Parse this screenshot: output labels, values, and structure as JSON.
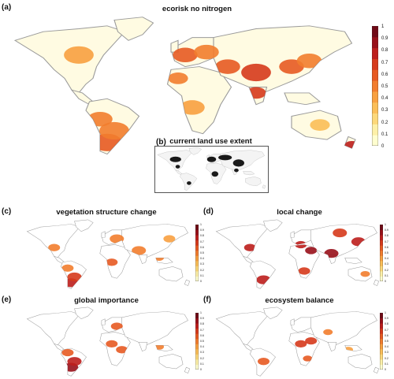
{
  "panels": {
    "a": {
      "letter": "(a)",
      "title": "ecorisk no nitrogen"
    },
    "b": {
      "letter": "(b)",
      "title": "current land use extent"
    },
    "c": {
      "letter": "(c)",
      "title": "vegetation structure change"
    },
    "d": {
      "letter": "(d)",
      "title": "local change"
    },
    "e": {
      "letter": "(e)",
      "title": "global importance"
    },
    "f": {
      "letter": "(f)",
      "title": "ecosystem balance"
    }
  },
  "colorbar": {
    "ticks": [
      "1",
      "0.9",
      "0.8",
      "0.7",
      "0.6",
      "0.5",
      "0.4",
      "0.3",
      "0.2",
      "0.1",
      "0"
    ],
    "colors": [
      "#fffecf",
      "#fdf0a8",
      "#fcd87a",
      "#fbbe58",
      "#f8a040",
      "#f27d2e",
      "#e75a22",
      "#d63a1c",
      "#bd1e1c",
      "#981019",
      "#700a16"
    ]
  },
  "colors": {
    "land": "#fffbe2",
    "border": "#9a9a9a",
    "inset_dark": "#1a1a1a",
    "inset_mid": "#8a8a8a"
  }
}
